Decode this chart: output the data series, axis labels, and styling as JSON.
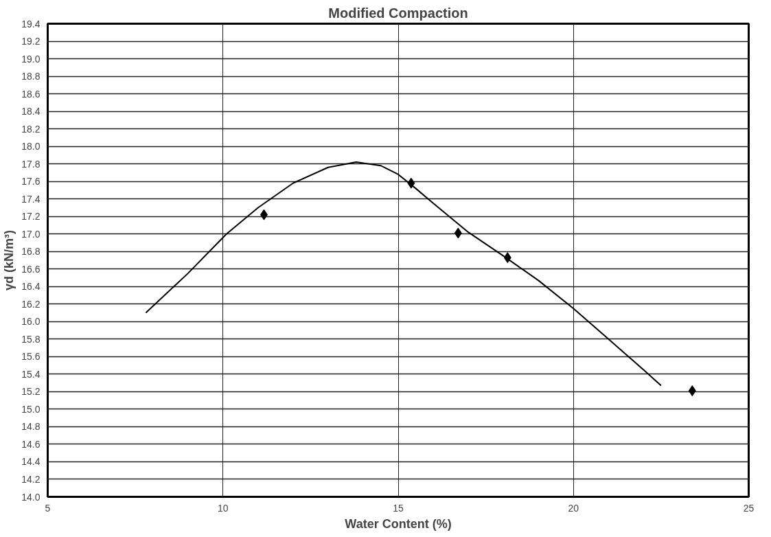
{
  "chart_data": {
    "type": "scatter",
    "title": "Modified Compaction",
    "xlabel": "Water Content (%)",
    "ylabel": "γd (kN/m³)",
    "xlim": [
      5,
      25
    ],
    "xticks": [
      5,
      10,
      15,
      20,
      25
    ],
    "ylim": [
      14.0,
      19.4
    ],
    "yticks": [
      {
        "value": 14.0,
        "label": "14.0"
      },
      14.2,
      14.4,
      14.6,
      14.8,
      {
        "value": 15.0,
        "label": "15.0"
      },
      15.2,
      15.4,
      15.6,
      15.8,
      {
        "value": 16.0,
        "label": "16.0"
      },
      16.2,
      16.4,
      16.6,
      16.8,
      {
        "value": 17.0,
        "label": "17.0"
      },
      17.2,
      17.4,
      17.6,
      17.8,
      {
        "value": 18.0,
        "label": "18.0"
      },
      18.2,
      18.4,
      18.6,
      18.8,
      {
        "value": 19.0,
        "label": "19.0"
      },
      19.2,
      19.4
    ],
    "grid": true,
    "marker": "diamond",
    "series": [
      {
        "color": "#000000",
        "x": [
          11.17,
          15.37,
          16.71,
          18.12,
          23.39
        ],
        "values": [
          17.22,
          17.58,
          17.01,
          16.73,
          15.21
        ]
      },
      {
        "type": "line",
        "color": "#000000",
        "marker": "none",
        "line_style": "solid",
        "x": [
          7.8,
          9,
          10.1,
          11,
          12,
          13,
          13.8,
          14.5,
          15,
          15.5,
          16,
          17,
          18,
          19,
          20,
          21,
          22,
          22.5
        ],
        "values": [
          16.1,
          16.55,
          17.0,
          17.3,
          17.58,
          17.76,
          17.82,
          17.78,
          17.68,
          17.52,
          17.35,
          17.02,
          16.75,
          16.47,
          16.15,
          15.8,
          15.45,
          15.27
        ]
      }
    ]
  }
}
